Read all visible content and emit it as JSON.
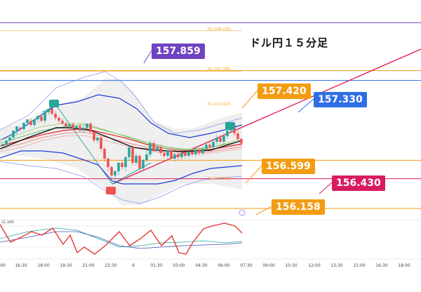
{
  "title": "ドル円１５分足",
  "chart_data": {
    "type": "line",
    "title": "ドル円１５分足",
    "xlabel": "",
    "ylabel": "",
    "ylim": [
      156.0,
      158.45
    ],
    "x_ticks": [
      "00",
      "16:30",
      "18:00",
      "19:30",
      "21:00",
      "22:30",
      "6",
      "01:30",
      "03:00",
      "04:30",
      "06:00",
      "07:30",
      "09:00",
      "10:30",
      "12:00",
      "13:30",
      "15:00",
      "16:30",
      "18:00"
    ],
    "pivot_levels": [
      {
        "name": "R3",
        "label": "R3 (158.226)",
        "value": 158.226
      },
      {
        "name": "R2",
        "label": "R2 (157.785)",
        "value": 157.785
      },
      {
        "name": "R1",
        "label": "R1 (157.413)",
        "value": 157.413
      },
      {
        "name": "S1",
        "label": "S1 (156.600)",
        "value": 156.6
      }
    ],
    "callouts": [
      {
        "label": "157.859",
        "value": 157.859,
        "color": "#6f42c1"
      },
      {
        "label": "157.420",
        "value": 157.42,
        "color": "#f39c12"
      },
      {
        "label": "157.330",
        "value": 157.33,
        "color": "#2f6fe4"
      },
      {
        "label": "156.599",
        "value": 156.599,
        "color": "#f39c12"
      },
      {
        "label": "156.430",
        "value": 156.43,
        "color": "#d81b60"
      },
      {
        "label": "156.158",
        "value": 156.158,
        "color": "#f39c12"
      }
    ],
    "oscillator": {
      "label": "21.189",
      "value": 21.189
    }
  },
  "colors": {
    "up": "#26a69a",
    "down": "#ef5350",
    "bb_outer": "#1f3bd6",
    "bb_inner": "#8a93e8",
    "trend": "#e6194b",
    "orange": "#f39c12",
    "purple": "#6f42c1",
    "blue": "#2f6fe4",
    "magenta": "#d81b60"
  }
}
